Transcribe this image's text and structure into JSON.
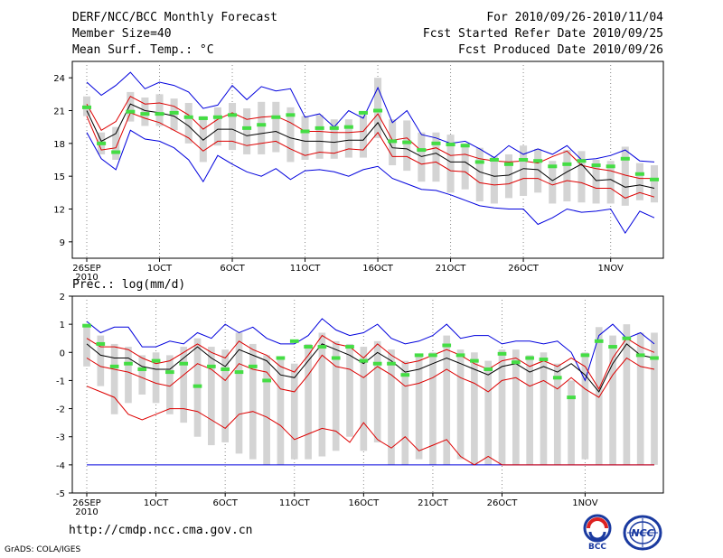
{
  "header": {
    "title": "DERF/NCC/BCC Monthly Forecast",
    "member_size": "Member Size=40",
    "variable": "Mean Surf. Temp.: °C",
    "period": "For 2010/09/26-2010/11/04",
    "started": "Fcst Started Refer Date 2010/09/25",
    "produced": "Fcst Produced Date 2010/09/26"
  },
  "footer": {
    "url": "http://cmdp.ncc.cma.gov.cn",
    "credit": "GrADS: COLA/IGES",
    "logo_bcc": "BCC",
    "logo_ncc": "NCC"
  },
  "colors": {
    "envelope": "#0000dd",
    "spread": "#dd0000",
    "mean": "#000000",
    "box": "#d4d4d4",
    "median": "#44dd44"
  },
  "chart_data": [
    {
      "type": "line",
      "title": "Mean Surf. Temp.: °C",
      "x_tick_labels": [
        "26SEP",
        "1OCT",
        "6OCT",
        "11OCT",
        "16OCT",
        "21OCT",
        "26OCT",
        "1NOV"
      ],
      "x_tick_year": "2010",
      "x_tick_day_index": [
        0,
        5,
        10,
        15,
        20,
        25,
        30,
        36
      ],
      "ylim": [
        7.5,
        25.5
      ],
      "yticks": [
        9,
        12,
        15,
        18,
        21,
        24
      ],
      "series": [
        {
          "name": "max",
          "values": [
            23.6,
            22.4,
            23.3,
            24.5,
            23.0,
            23.6,
            23.3,
            22.7,
            21.2,
            21.5,
            23.3,
            22.0,
            23.2,
            22.8,
            23.0,
            20.4,
            20.7,
            19.5,
            21.0,
            20.3,
            23.1,
            19.9,
            21.0,
            18.8,
            18.5,
            18.0,
            18.2,
            17.5,
            16.7,
            17.8,
            17.0,
            17.5,
            17.0,
            17.8,
            16.5,
            16.6,
            16.9,
            17.4,
            16.4,
            16.3
          ]
        },
        {
          "name": "upper",
          "values": [
            21.6,
            19.2,
            20.0,
            22.3,
            21.6,
            21.7,
            21.4,
            20.6,
            19.3,
            20.2,
            20.8,
            20.2,
            20.4,
            20.5,
            19.9,
            19.1,
            19.1,
            19.0,
            19.0,
            19.1,
            20.7,
            18.3,
            18.5,
            17.3,
            17.6,
            16.9,
            17.0,
            16.6,
            16.4,
            16.3,
            16.4,
            16.2,
            16.8,
            17.3,
            16.0,
            15.7,
            15.5,
            15.1,
            14.8,
            14.8
          ]
        },
        {
          "name": "mean",
          "values": [
            21.0,
            18.2,
            18.9,
            21.6,
            21.0,
            20.8,
            20.5,
            19.6,
            18.3,
            19.3,
            19.3,
            18.7,
            18.9,
            19.1,
            18.5,
            18.2,
            18.2,
            18.1,
            18.3,
            18.3,
            19.9,
            17.6,
            17.5,
            16.8,
            17.1,
            16.3,
            16.3,
            15.4,
            15.0,
            15.1,
            15.7,
            15.6,
            14.6,
            15.4,
            16.1,
            14.6,
            14.7,
            14.0,
            14.2,
            13.9
          ]
        },
        {
          "name": "lower",
          "values": [
            20.5,
            17.4,
            17.6,
            20.8,
            20.3,
            19.9,
            19.2,
            18.5,
            17.3,
            18.2,
            18.2,
            17.8,
            18.0,
            18.2,
            17.5,
            16.9,
            17.2,
            17.1,
            17.5,
            17.4,
            19.0,
            16.8,
            16.8,
            16.1,
            16.3,
            15.5,
            15.4,
            14.4,
            14.2,
            14.3,
            14.8,
            14.8,
            14.2,
            14.6,
            14.4,
            13.9,
            13.9,
            13.0,
            13.5,
            13.1
          ]
        },
        {
          "name": "min",
          "values": [
            19.0,
            16.6,
            15.6,
            19.2,
            18.4,
            18.2,
            17.6,
            16.5,
            14.5,
            16.9,
            16.1,
            15.4,
            15.0,
            15.7,
            14.7,
            15.5,
            15.6,
            15.4,
            15.0,
            15.6,
            15.9,
            14.8,
            14.3,
            13.8,
            13.7,
            13.3,
            12.8,
            12.3,
            12.1,
            12.0,
            12.0,
            10.6,
            11.2,
            12.0,
            11.7,
            11.8,
            12.0,
            9.8,
            11.8,
            11.2
          ]
        },
        {
          "name": "median",
          "values": [
            21.3,
            18.0,
            17.2,
            20.9,
            20.7,
            20.7,
            20.8,
            20.4,
            20.3,
            20.4,
            20.6,
            19.4,
            19.7,
            20.4,
            20.6,
            19.1,
            19.4,
            19.4,
            19.5,
            20.8,
            21.0,
            18.2,
            18.1,
            17.4,
            18.0,
            17.9,
            17.8,
            16.3,
            16.5,
            16.1,
            16.5,
            16.4,
            15.9,
            16.1,
            16.4,
            16.0,
            15.9,
            16.6,
            15.2,
            14.7
          ]
        }
      ],
      "box_ranges": [
        [
          20.5,
          22.3
        ],
        [
          17.0,
          19.0
        ],
        [
          16.5,
          19.5
        ],
        [
          20.0,
          22.7
        ],
        [
          19.6,
          22.2
        ],
        [
          19.6,
          22.5
        ],
        [
          19.2,
          22.1
        ],
        [
          18.0,
          21.7
        ],
        [
          16.3,
          20.5
        ],
        [
          17.8,
          21.3
        ],
        [
          17.4,
          21.7
        ],
        [
          17.0,
          21.2
        ],
        [
          17.0,
          21.8
        ],
        [
          17.2,
          21.8
        ],
        [
          16.3,
          21.3
        ],
        [
          16.5,
          20.5
        ],
        [
          16.6,
          20.6
        ],
        [
          16.6,
          20.2
        ],
        [
          16.7,
          20.2
        ],
        [
          16.7,
          20.6
        ],
        [
          18.5,
          24.0
        ],
        [
          16.0,
          20.2
        ],
        [
          15.5,
          20.1
        ],
        [
          14.5,
          19.0
        ],
        [
          14.5,
          19.0
        ],
        [
          13.5,
          18.8
        ],
        [
          13.8,
          18.0
        ],
        [
          12.7,
          17.6
        ],
        [
          12.5,
          16.8
        ],
        [
          13.0,
          17.0
        ],
        [
          13.2,
          17.8
        ],
        [
          13.5,
          17.5
        ],
        [
          12.5,
          16.4
        ],
        [
          12.7,
          17.4
        ],
        [
          12.6,
          17.3
        ],
        [
          12.5,
          16.5
        ],
        [
          12.5,
          16.4
        ],
        [
          12.3,
          17.7
        ],
        [
          12.8,
          16.2
        ],
        [
          12.6,
          16.0
        ]
      ]
    },
    {
      "type": "line",
      "title": "Prec.: log(mm/d)",
      "x_tick_labels": [
        "26SEP",
        "1OCT",
        "6OCT",
        "11OCT",
        "16OCT",
        "21OCT",
        "26OCT",
        "1NOV"
      ],
      "x_tick_year": "2010",
      "x_tick_day_index": [
        0,
        5,
        10,
        15,
        20,
        25,
        30,
        36
      ],
      "ylim": [
        -5,
        2
      ],
      "yticks": [
        -5,
        -4,
        -3,
        -2,
        -1,
        0,
        1,
        2
      ],
      "series": [
        {
          "name": "max",
          "values": [
            1.1,
            0.7,
            0.9,
            0.9,
            0.2,
            0.2,
            0.4,
            0.3,
            0.7,
            0.5,
            1.0,
            0.7,
            0.9,
            0.5,
            0.3,
            0.3,
            0.6,
            1.2,
            0.8,
            0.6,
            0.7,
            1.0,
            0.5,
            0.3,
            0.4,
            0.6,
            1.0,
            0.5,
            0.6,
            0.6,
            0.3,
            0.4,
            0.4,
            0.3,
            0.4,
            0.0,
            -1.0,
            0.6,
            1.0,
            0.5,
            0.7,
            0.3
          ]
        },
        {
          "name": "upper",
          "values": [
            0.5,
            0.2,
            0.2,
            0.1,
            -0.2,
            -0.4,
            -0.3,
            0.0,
            0.3,
            0.0,
            -0.2,
            0.4,
            0.1,
            -0.1,
            -0.5,
            -0.7,
            -0.1,
            0.6,
            0.3,
            0.2,
            -0.2,
            0.3,
            -0.1,
            -0.4,
            -0.3,
            -0.1,
            0.1,
            -0.1,
            -0.4,
            -0.6,
            -0.3,
            -0.2,
            -0.5,
            -0.3,
            -0.5,
            -0.2,
            -0.5,
            -1.3,
            -0.2,
            0.5,
            0.2,
            0.0
          ]
        },
        {
          "name": "mean",
          "values": [
            0.3,
            -0.1,
            -0.2,
            -0.2,
            -0.5,
            -0.6,
            -0.6,
            -0.2,
            0.2,
            -0.2,
            -0.5,
            0.1,
            -0.1,
            -0.3,
            -0.8,
            -0.9,
            -0.3,
            0.3,
            0.1,
            -0.1,
            -0.4,
            0.0,
            -0.3,
            -0.7,
            -0.6,
            -0.4,
            -0.2,
            -0.4,
            -0.6,
            -0.8,
            -0.5,
            -0.4,
            -0.7,
            -0.5,
            -0.7,
            -0.4,
            -0.8,
            -1.4,
            -0.4,
            0.3,
            -0.1,
            -0.2
          ]
        },
        {
          "name": "lower",
          "values": [
            -0.2,
            -0.5,
            -0.6,
            -0.7,
            -0.9,
            -1.1,
            -1.2,
            -0.8,
            -0.4,
            -0.6,
            -1.0,
            -0.4,
            -0.6,
            -0.7,
            -1.3,
            -1.4,
            -0.8,
            -0.1,
            -0.5,
            -0.6,
            -0.9,
            -0.5,
            -0.8,
            -1.2,
            -1.1,
            -0.9,
            -0.6,
            -0.9,
            -1.1,
            -1.4,
            -1.0,
            -0.9,
            -1.2,
            -1.0,
            -1.3,
            -0.9,
            -1.3,
            -1.6,
            -0.8,
            -0.2,
            -0.5,
            -0.6
          ]
        },
        {
          "name": "min",
          "values": [
            -4,
            -4,
            -4,
            -4,
            -4,
            -4,
            -4,
            -4,
            -4,
            -4,
            -4,
            -4,
            -4,
            -4,
            -4,
            -4,
            -4,
            -4,
            -4,
            -4,
            -4,
            -4,
            -4,
            -4,
            -4,
            -4,
            -4,
            -4,
            -4,
            -4,
            -4,
            -4,
            -4,
            -4,
            -4,
            -4,
            -4,
            -4,
            -4,
            -4,
            -4,
            -4
          ]
        },
        {
          "name": "lower_min",
          "values": [
            -1.2,
            -1.4,
            -1.6,
            -2.2,
            -2.4,
            -2.2,
            -2.0,
            -2.0,
            -2.1,
            -2.4,
            -2.7,
            -2.2,
            -2.1,
            -2.3,
            -2.6,
            -3.1,
            -2.9,
            -2.7,
            -2.8,
            -3.2,
            -2.5,
            -3.1,
            -3.4,
            -3.0,
            -3.5,
            -3.3,
            -3.1,
            -3.7,
            -4.0,
            -3.7,
            -4.0,
            -4.0,
            -4.0,
            -4.0,
            -4.0,
            -4.0,
            -4.0,
            -4.0,
            -4.0,
            -4.0,
            -4.0,
            -4.0
          ]
        },
        {
          "name": "median",
          "values": [
            0.95,
            0.3,
            -0.5,
            -0.4,
            -0.6,
            -0.3,
            -0.7,
            -0.4,
            -1.2,
            -0.5,
            -0.6,
            -0.7,
            -0.5,
            -1.0,
            -0.2,
            0.4,
            0.2,
            0.2,
            -0.2,
            0.2,
            -0.3,
            -0.4,
            -0.4,
            -0.8,
            -0.1,
            -0.1,
            0.25,
            -0.1,
            -0.3,
            -0.6,
            -0.05,
            -0.35,
            -0.2,
            -0.25,
            -0.9,
            -1.6,
            -0.1,
            0.4,
            0.2,
            0.5,
            -0.1,
            -0.2
          ]
        }
      ],
      "box_ranges": [
        [
          -0.5,
          1.0
        ],
        [
          -1.2,
          0.6
        ],
        [
          -2.2,
          0.3
        ],
        [
          -1.8,
          0.2
        ],
        [
          -1.5,
          -0.1
        ],
        [
          -1.8,
          0.0
        ],
        [
          -2.2,
          -0.1
        ],
        [
          -2.5,
          0.2
        ],
        [
          -3.0,
          0.5
        ],
        [
          -3.3,
          0.2
        ],
        [
          -3.2,
          0.1
        ],
        [
          -3.6,
          0.7
        ],
        [
          -3.8,
          0.3
        ],
        [
          -4.0,
          -0.1
        ],
        [
          -4.0,
          -0.2
        ],
        [
          -3.8,
          -0.4
        ],
        [
          -3.8,
          0.3
        ],
        [
          -3.7,
          0.7
        ],
        [
          -3.5,
          0.4
        ],
        [
          -3.0,
          0.3
        ],
        [
          -3.5,
          0.2
        ],
        [
          -3.2,
          0.4
        ],
        [
          -4.0,
          0.1
        ],
        [
          -4.0,
          -0.3
        ],
        [
          -3.8,
          -0.1
        ],
        [
          -4.0,
          0.0
        ],
        [
          -4.0,
          0.6
        ],
        [
          -3.8,
          0.1
        ],
        [
          -4.0,
          0.0
        ],
        [
          -4.0,
          -0.3
        ],
        [
          -4.0,
          0.1
        ],
        [
          -4.0,
          0.1
        ],
        [
          -4.0,
          -0.1
        ],
        [
          -4.0,
          0.0
        ],
        [
          -4.0,
          -0.4
        ],
        [
          -4.0,
          -1.0
        ],
        [
          -3.8,
          0.0
        ],
        [
          -4.0,
          0.9
        ],
        [
          -4.0,
          0.6
        ],
        [
          -4.0,
          1.0
        ],
        [
          -4.0,
          0.7
        ],
        [
          -4.0,
          0.7
        ]
      ]
    }
  ]
}
